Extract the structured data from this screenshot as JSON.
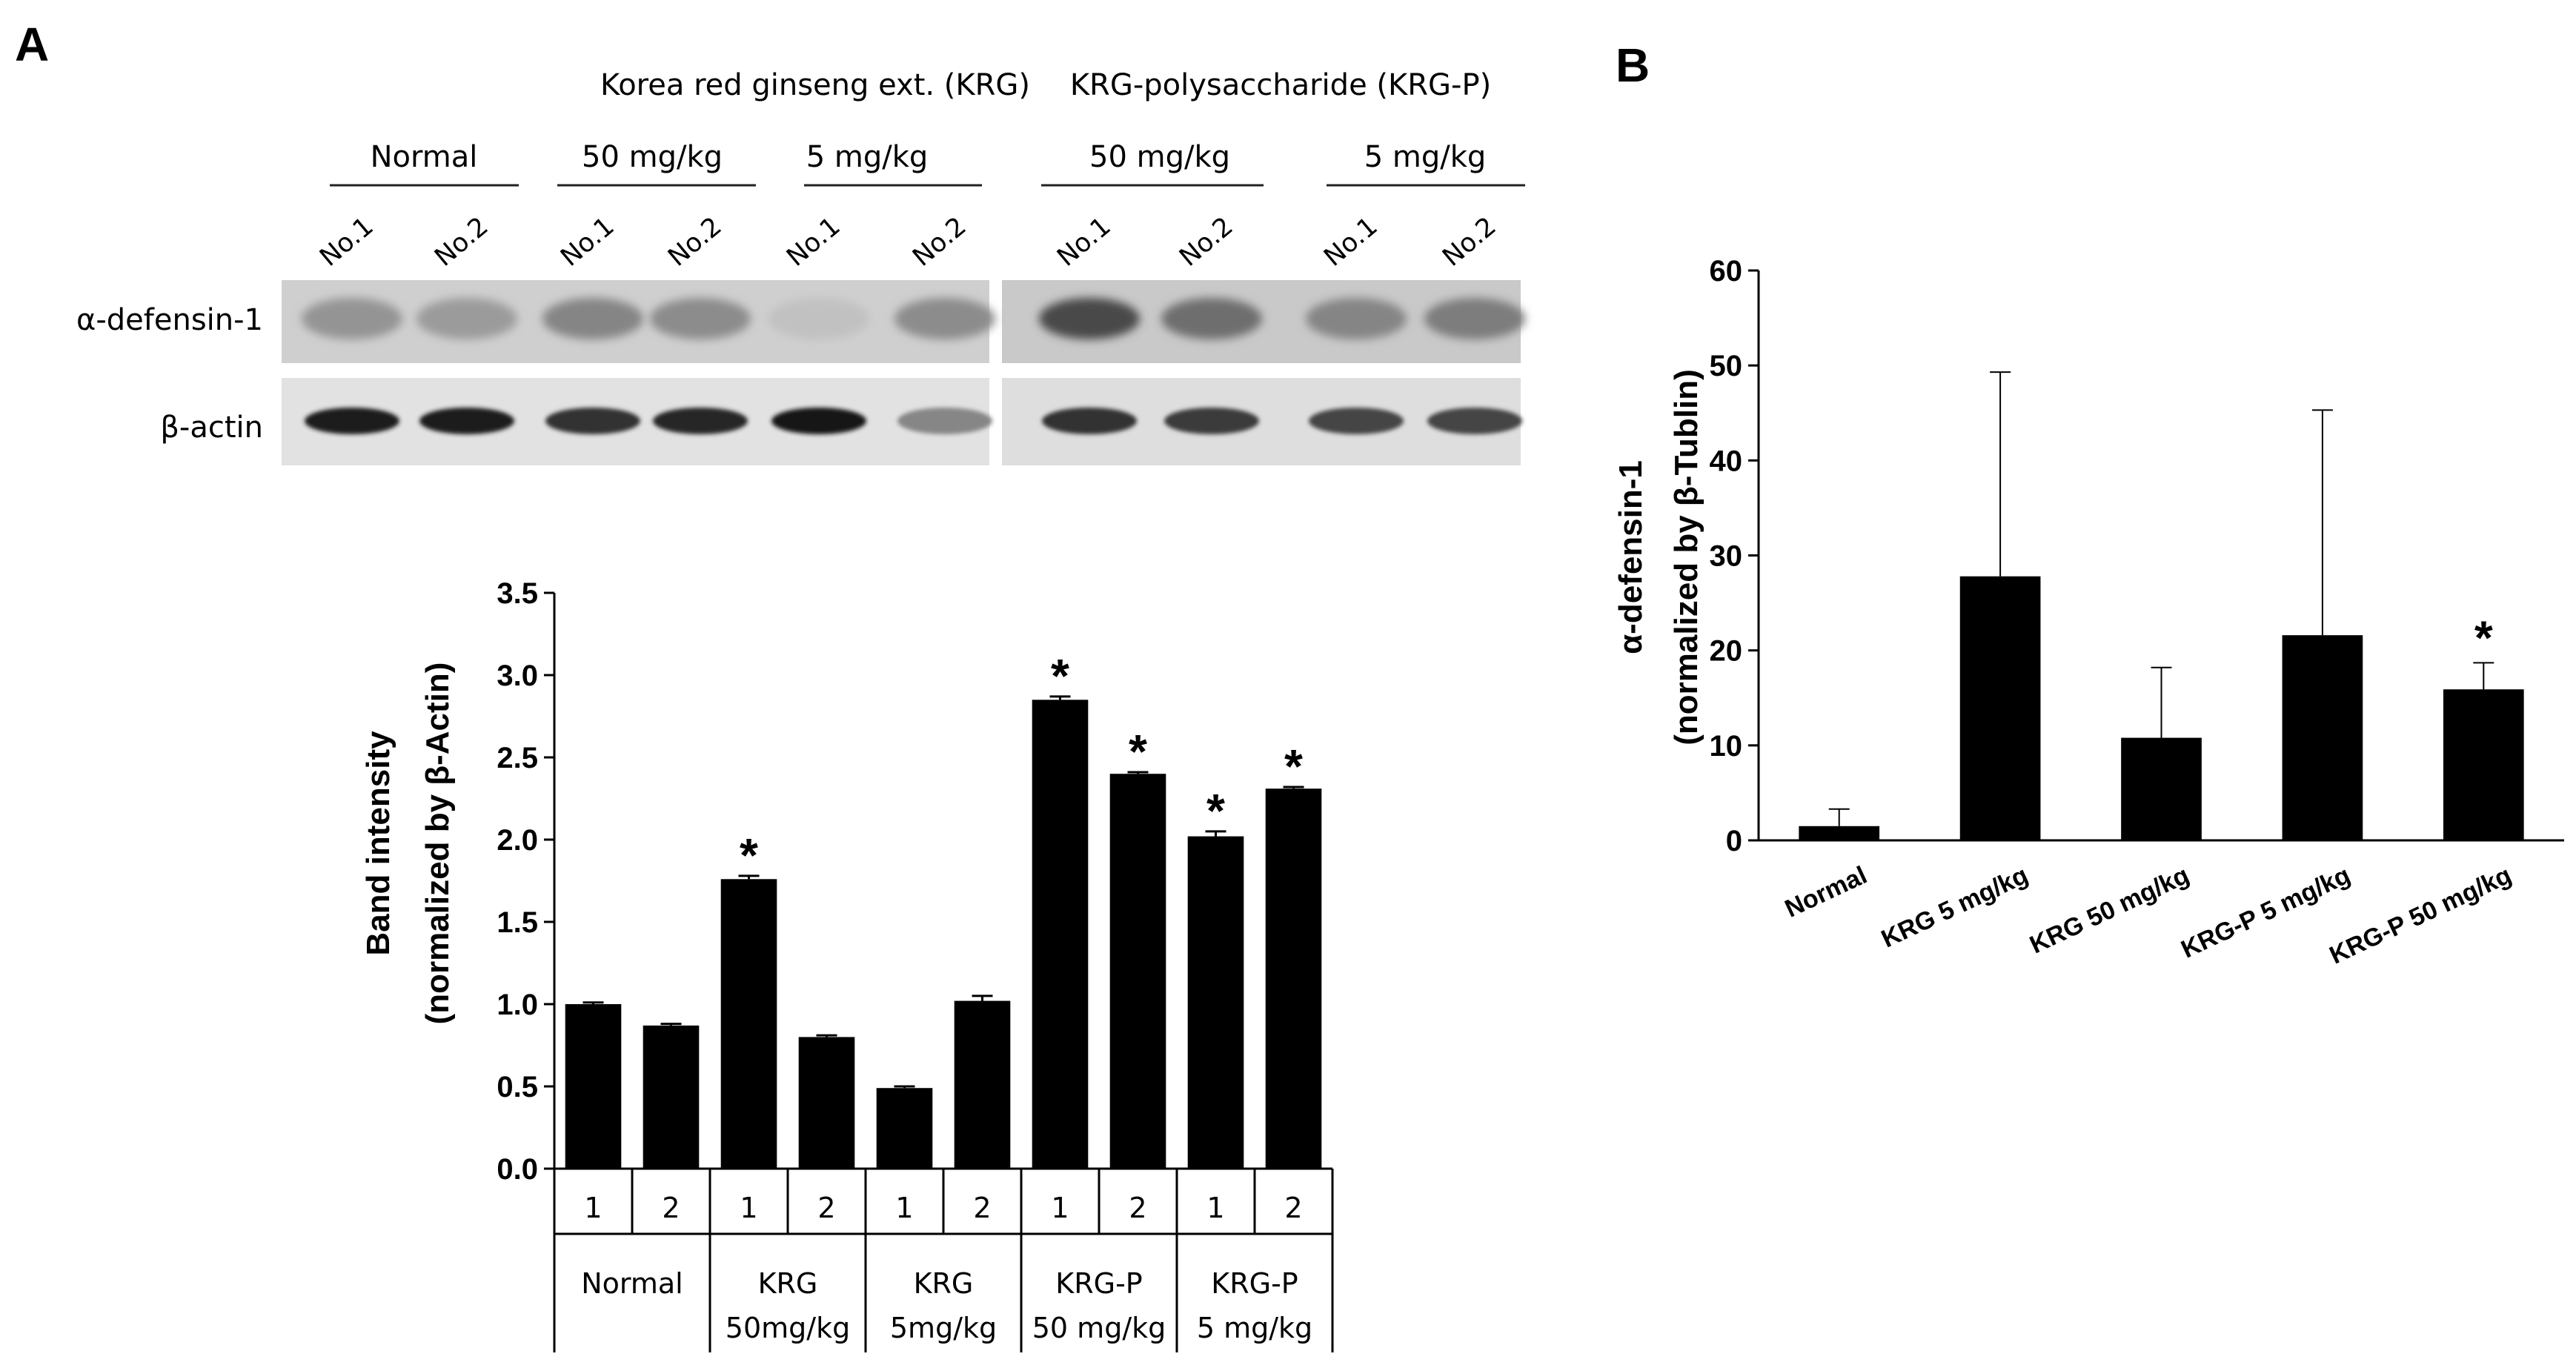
{
  "panels": {
    "a_label": "A",
    "b_label": "B"
  },
  "blot": {
    "groups_top": [
      {
        "label": "Korea red ginseng ext. (KRG)"
      },
      {
        "label": "KRG-polysaccharide (KRG-P)"
      }
    ],
    "groups_mid": [
      {
        "label": "Normal"
      },
      {
        "label": "50 mg/kg"
      },
      {
        "label": "5 mg/kg"
      },
      {
        "label": "50 mg/kg"
      },
      {
        "label": "5 mg/kg"
      }
    ],
    "lane_labels": [
      "No.1",
      "No.2",
      "No.1",
      "No.2",
      "No.1",
      "No.2",
      "No.1",
      "No.2",
      "No.1",
      "No.2"
    ],
    "row_labels": [
      "α-defensin-1",
      "β-actin"
    ]
  },
  "chart_data": [
    {
      "type": "bar",
      "title": "",
      "ylabel_line1": "Band intensity",
      "ylabel_line2": "(normalized by β-Actin)",
      "ylim": [
        0,
        3.5
      ],
      "yticks": [
        "0.0",
        "0.5",
        "1.0",
        "1.5",
        "2.0",
        "2.5",
        "3.0",
        "3.5"
      ],
      "sub_labels": [
        "1",
        "2",
        "1",
        "2",
        "1",
        "2",
        "1",
        "2",
        "1",
        "2"
      ],
      "groups": [
        {
          "line1": "Normal",
          "line2": ""
        },
        {
          "line1": "KRG",
          "line2": "50mg/kg"
        },
        {
          "line1": "KRG",
          "line2": "5mg/kg"
        },
        {
          "line1": "KRG-P",
          "line2": "50 mg/kg"
        },
        {
          "line1": "KRG-P",
          "line2": "5 mg/kg"
        }
      ],
      "values": [
        1.0,
        0.87,
        1.76,
        0.8,
        0.49,
        1.02,
        2.85,
        2.4,
        2.02,
        2.31
      ],
      "errors": [
        0.01,
        0.01,
        0.02,
        0.01,
        0.01,
        0.03,
        0.02,
        0.01,
        0.03,
        0.01
      ],
      "significant": [
        false,
        false,
        true,
        false,
        false,
        false,
        true,
        true,
        true,
        true
      ],
      "star": "*"
    },
    {
      "type": "bar",
      "title": "",
      "ylabel_line1": "α-defensin-1",
      "ylabel_line2": "(normalized by β-Tublin)",
      "ylim": [
        0,
        60
      ],
      "yticks": [
        "0",
        "10",
        "20",
        "30",
        "40",
        "50",
        "60"
      ],
      "categories": [
        "Normal",
        "KRG 5 mg/kg",
        "KRG 50 mg/kg",
        "KRG-P 5 mg/kg",
        "KRG-P 50 mg/kg"
      ],
      "values": [
        1.5,
        27.8,
        10.8,
        21.6,
        15.9
      ],
      "errors": [
        1.8,
        21.5,
        7.4,
        23.7,
        2.8
      ],
      "significant": [
        false,
        false,
        false,
        false,
        true
      ],
      "star": "*"
    }
  ]
}
